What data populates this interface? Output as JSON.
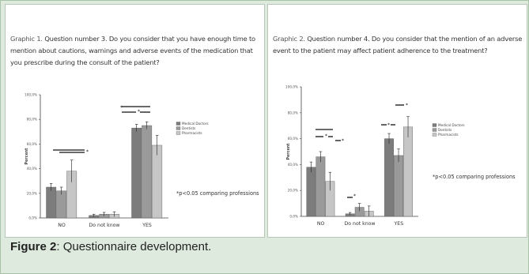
{
  "figure_caption": {
    "label": "Figure 2",
    "text": ": Questionnaire development."
  },
  "chart_data": [
    {
      "type": "bar",
      "title_lead": "Graphic 1. ",
      "title": "Question number 3. Do you consider that you have enough time to mention about cautions, warnings and adverse events of the medication that you prescribe during the consult of the patient?",
      "ylabel": "Percent",
      "ylim": [
        0,
        100
      ],
      "yticks": [
        "0,0%",
        "20,0%",
        "40,0%",
        "60,0%",
        "80,0%",
        "100,0%"
      ],
      "categories": [
        "NO",
        "Do not know",
        "YES"
      ],
      "legend_position": "right",
      "series": [
        {
          "name": "Medical Doctors",
          "color": "#7c7c7c",
          "values": [
            25,
            2,
            73
          ]
        },
        {
          "name": "Dentists",
          "color": "#9a9a9a",
          "values": [
            22,
            3,
            75
          ]
        },
        {
          "name": "Pharmacists",
          "color": "#c6c6c6",
          "values": [
            38,
            3,
            59
          ]
        }
      ],
      "errors": [
        [
          3,
          1,
          3
        ],
        [
          3,
          1.5,
          3
        ],
        [
          9,
          2,
          8
        ]
      ],
      "note": "*p<0.05 comparing professions"
    },
    {
      "type": "bar",
      "title_lead": "Graphic 2. ",
      "title": "Question number 4. Do you consider that the mention of an adverse event to the patient may affect patient adherence to the treatment?",
      "ylabel": "Percent",
      "ylim": [
        0,
        100
      ],
      "yticks": [
        "0,0%",
        "20,0%",
        "40,0%",
        "60,0%",
        "80,0%",
        "100,0%"
      ],
      "categories": [
        "NO",
        "Do not know",
        "YES"
      ],
      "legend_position": "right",
      "series": [
        {
          "name": "Medical Doctors",
          "color": "#7c7c7c",
          "values": [
            38,
            2,
            60
          ]
        },
        {
          "name": "Dentists",
          "color": "#9a9a9a",
          "values": [
            46,
            7,
            47
          ]
        },
        {
          "name": "Pharmacists",
          "color": "#c6c6c6",
          "values": [
            27,
            4,
            69
          ]
        }
      ],
      "errors": [
        [
          4,
          1,
          4
        ],
        [
          4,
          3,
          5
        ],
        [
          7,
          4,
          8
        ]
      ],
      "note": "*p<0.05 comparing professions"
    }
  ]
}
